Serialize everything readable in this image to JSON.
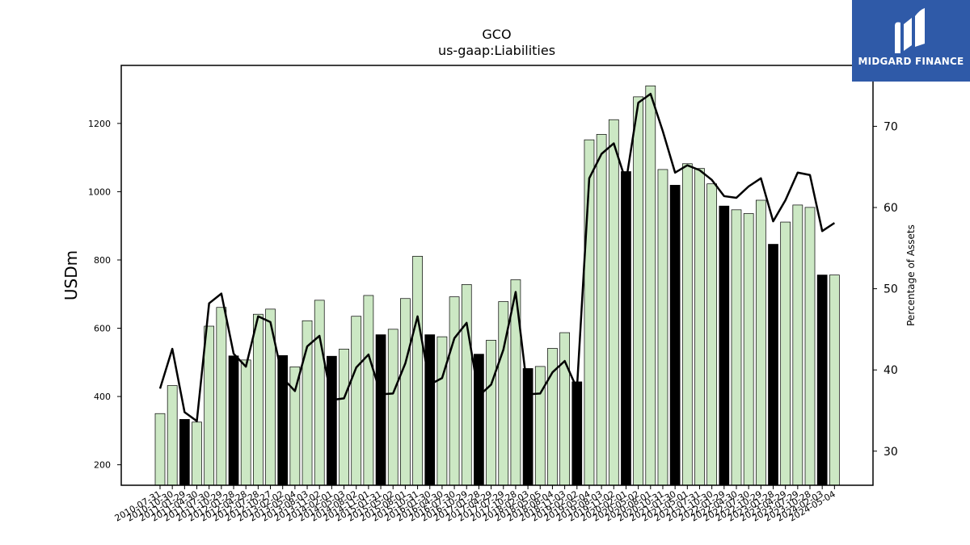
{
  "logo": {
    "text": "MIDGARD FINANCE",
    "color": "#2f5aa8"
  },
  "chart_data": {
    "type": "bar",
    "title": "GCO",
    "subtitle": "us-gaap:Liabilities",
    "ylabel": "USDm",
    "y2label": "Percentage of Assets",
    "ylim": [
      140,
      1370
    ],
    "y2lim": [
      25.8,
      77.5
    ],
    "yticks": [
      200,
      400,
      600,
      800,
      1000,
      1200
    ],
    "y2ticks": [
      30,
      40,
      50,
      60,
      70
    ],
    "grid": false,
    "colors": {
      "bar_light": "#cce8c4",
      "bar_dark": "#000000",
      "line": "#000000"
    },
    "categories": [
      "2010-07-31",
      "2010-10-30",
      "2011-01-29",
      "2011-04-30",
      "2011-07-30",
      "2011-10-29",
      "2012-01-28",
      "2012-04-28",
      "2012-07-28",
      "2012-10-27",
      "2013-02-02",
      "2013-05-04",
      "2013-08-03",
      "2013-11-02",
      "2014-02-01",
      "2014-05-03",
      "2014-08-02",
      "2014-11-01",
      "2015-01-31",
      "2015-05-02",
      "2015-08-01",
      "2015-10-31",
      "2016-01-30",
      "2016-04-30",
      "2016-07-30",
      "2016-10-29",
      "2017-01-28",
      "2017-04-29",
      "2017-07-29",
      "2017-10-28",
      "2018-02-03",
      "2018-05-05",
      "2018-08-04",
      "2018-11-03",
      "2019-02-02",
      "2019-05-04",
      "2019-08-03",
      "2019-11-02",
      "2020-02-01",
      "2020-05-02",
      "2020-08-01",
      "2020-10-31",
      "2021-01-30",
      "2021-05-01",
      "2021-07-31",
      "2021-10-30",
      "2022-01-29",
      "2022-04-30",
      "2022-07-30",
      "2022-10-29",
      "2023-01-28",
      "2023-04-29",
      "2023-07-29",
      "2023-10-28",
      "2024-02-03",
      "2024-05-04"
    ],
    "series": [
      {
        "type": "bar",
        "values": [
          350,
          432,
          333,
          325,
          606,
          661,
          519,
          507,
          641,
          656,
          520,
          487,
          622,
          682,
          518,
          539,
          635,
          696,
          581,
          597,
          687,
          811,
          581,
          575,
          692,
          728,
          524,
          565,
          678,
          742,
          482,
          488,
          541,
          587,
          443,
          1152,
          1168,
          1211,
          1059,
          1278,
          1310,
          1065,
          1019,
          1082,
          1068,
          1023,
          958,
          947,
          936,
          975,
          846,
          911,
          961,
          954,
          756,
          756
        ],
        "highlight": [
          false,
          false,
          true,
          false,
          false,
          false,
          true,
          false,
          false,
          false,
          true,
          false,
          false,
          false,
          true,
          false,
          false,
          false,
          true,
          false,
          false,
          false,
          true,
          false,
          false,
          false,
          true,
          false,
          false,
          false,
          true,
          false,
          false,
          false,
          true,
          false,
          false,
          false,
          true,
          false,
          false,
          false,
          true,
          false,
          false,
          false,
          true,
          false,
          false,
          false,
          true,
          false,
          false,
          false,
          true,
          false
        ]
      },
      {
        "type": "line",
        "axis": "right",
        "values": [
          37.7,
          42.6,
          34.8,
          33.7,
          48.2,
          49.4,
          42.0,
          40.4,
          46.6,
          45.9,
          39.0,
          37.4,
          42.9,
          44.2,
          36.3,
          36.5,
          40.3,
          41.9,
          37.0,
          37.1,
          40.8,
          46.6,
          38.2,
          39.0,
          43.9,
          45.8,
          36.8,
          38.2,
          42.5,
          49.6,
          37.0,
          37.1,
          39.7,
          41.1,
          37.7,
          63.6,
          66.6,
          67.9,
          63.2,
          72.9,
          74.0,
          69.4,
          64.3,
          65.2,
          64.6,
          63.4,
          61.4,
          61.2,
          62.6,
          63.6,
          58.3,
          60.9,
          64.3,
          64.0,
          57.1,
          58.1
        ]
      }
    ]
  }
}
